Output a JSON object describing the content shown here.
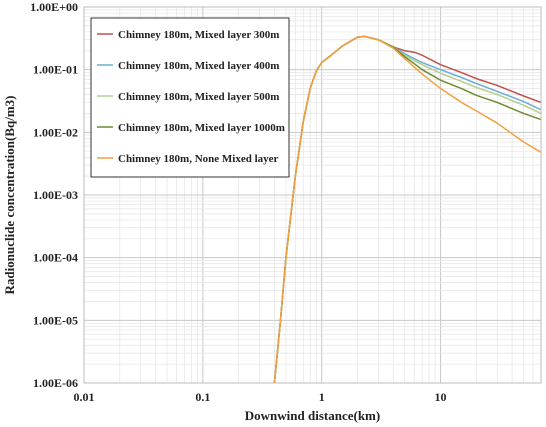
{
  "chart_data": {
    "type": "line",
    "title": "",
    "xlabel": "Downwind distance(km)",
    "ylabel": "Radionuclide concentration(Bq/m3)",
    "x_scale": "log",
    "y_scale": "log",
    "xlim": [
      0.01,
      70
    ],
    "ylim": [
      1e-06,
      1
    ],
    "x_ticks": [
      {
        "value": 0.01,
        "label": "0.01"
      },
      {
        "value": 0.1,
        "label": "0.1"
      },
      {
        "value": 1,
        "label": "1"
      },
      {
        "value": 10,
        "label": "10"
      }
    ],
    "y_ticks": [
      {
        "value": 1,
        "label": "1.00E+00"
      },
      {
        "value": 0.1,
        "label": "1.00E-01"
      },
      {
        "value": 0.01,
        "label": "1.00E-02"
      },
      {
        "value": 0.001,
        "label": "1.00E-03"
      },
      {
        "value": 0.0001,
        "label": "1.00E-04"
      },
      {
        "value": 1e-05,
        "label": "1.00E-05"
      },
      {
        "value": 1e-06,
        "label": "1.00E-06"
      }
    ],
    "grid": true,
    "legend_position": "top-left",
    "series": [
      {
        "name": "Chimney 180m, Mixed layer 300m",
        "color": "#c0504d",
        "x": [
          0.4,
          0.45,
          0.5,
          0.6,
          0.7,
          0.8,
          0.9,
          1.0,
          1.2,
          1.5,
          2.0,
          2.3,
          3.0,
          4.0,
          5.0,
          6.0,
          7.0,
          10.0,
          15.0,
          20.0,
          30.0,
          50.0,
          70.0
        ],
        "y": [
          1e-06,
          1e-05,
          0.0001,
          0.002,
          0.015,
          0.05,
          0.095,
          0.13,
          0.17,
          0.24,
          0.33,
          0.34,
          0.3,
          0.23,
          0.2,
          0.19,
          0.17,
          0.12,
          0.09,
          0.072,
          0.056,
          0.038,
          0.03
        ]
      },
      {
        "name": "Chimney 180m, Mixed layer 400m",
        "color": "#6aaed6",
        "x": [
          0.4,
          0.45,
          0.5,
          0.6,
          0.7,
          0.8,
          0.9,
          1.0,
          1.2,
          1.5,
          2.0,
          2.3,
          3.0,
          4.0,
          5.0,
          6.0,
          7.0,
          10.0,
          15.0,
          20.0,
          30.0,
          50.0,
          70.0
        ],
        "y": [
          1e-06,
          1e-05,
          0.0001,
          0.002,
          0.015,
          0.05,
          0.095,
          0.13,
          0.17,
          0.24,
          0.33,
          0.34,
          0.3,
          0.23,
          0.18,
          0.15,
          0.13,
          0.1,
          0.075,
          0.06,
          0.045,
          0.031,
          0.023
        ]
      },
      {
        "name": "Chimney 180m, Mixed layer 500m",
        "color": "#b5cc8e",
        "x": [
          0.4,
          0.45,
          0.5,
          0.6,
          0.7,
          0.8,
          0.9,
          1.0,
          1.2,
          1.5,
          2.0,
          2.3,
          3.0,
          4.0,
          5.0,
          6.0,
          7.0,
          10.0,
          15.0,
          20.0,
          30.0,
          50.0,
          70.0
        ],
        "y": [
          1e-06,
          1e-05,
          0.0001,
          0.002,
          0.015,
          0.05,
          0.095,
          0.13,
          0.17,
          0.24,
          0.33,
          0.34,
          0.3,
          0.23,
          0.17,
          0.14,
          0.12,
          0.088,
          0.065,
          0.052,
          0.04,
          0.027,
          0.02
        ]
      },
      {
        "name": "Chimney 180m, Mixed layer 1000m",
        "color": "#6e8a2e",
        "x": [
          0.4,
          0.45,
          0.5,
          0.6,
          0.7,
          0.8,
          0.9,
          1.0,
          1.2,
          1.5,
          2.0,
          2.3,
          3.0,
          4.0,
          5.0,
          6.0,
          7.0,
          10.0,
          15.0,
          20.0,
          30.0,
          50.0,
          70.0
        ],
        "y": [
          1e-06,
          1e-05,
          0.0001,
          0.002,
          0.015,
          0.05,
          0.095,
          0.13,
          0.17,
          0.24,
          0.33,
          0.34,
          0.3,
          0.23,
          0.16,
          0.125,
          0.1,
          0.068,
          0.05,
          0.039,
          0.03,
          0.02,
          0.016
        ]
      },
      {
        "name": "Chimney 180m, None Mixed layer",
        "color": "#f5a040",
        "x": [
          0.4,
          0.45,
          0.5,
          0.6,
          0.7,
          0.8,
          0.9,
          1.0,
          1.2,
          1.5,
          2.0,
          2.3,
          3.0,
          4.0,
          5.0,
          6.0,
          7.0,
          10.0,
          15.0,
          20.0,
          30.0,
          50.0,
          70.0
        ],
        "y": [
          1e-06,
          1e-05,
          0.0001,
          0.002,
          0.015,
          0.05,
          0.095,
          0.13,
          0.17,
          0.24,
          0.33,
          0.34,
          0.3,
          0.22,
          0.15,
          0.11,
          0.085,
          0.05,
          0.03,
          0.022,
          0.014,
          0.007,
          0.0048
        ]
      }
    ]
  }
}
